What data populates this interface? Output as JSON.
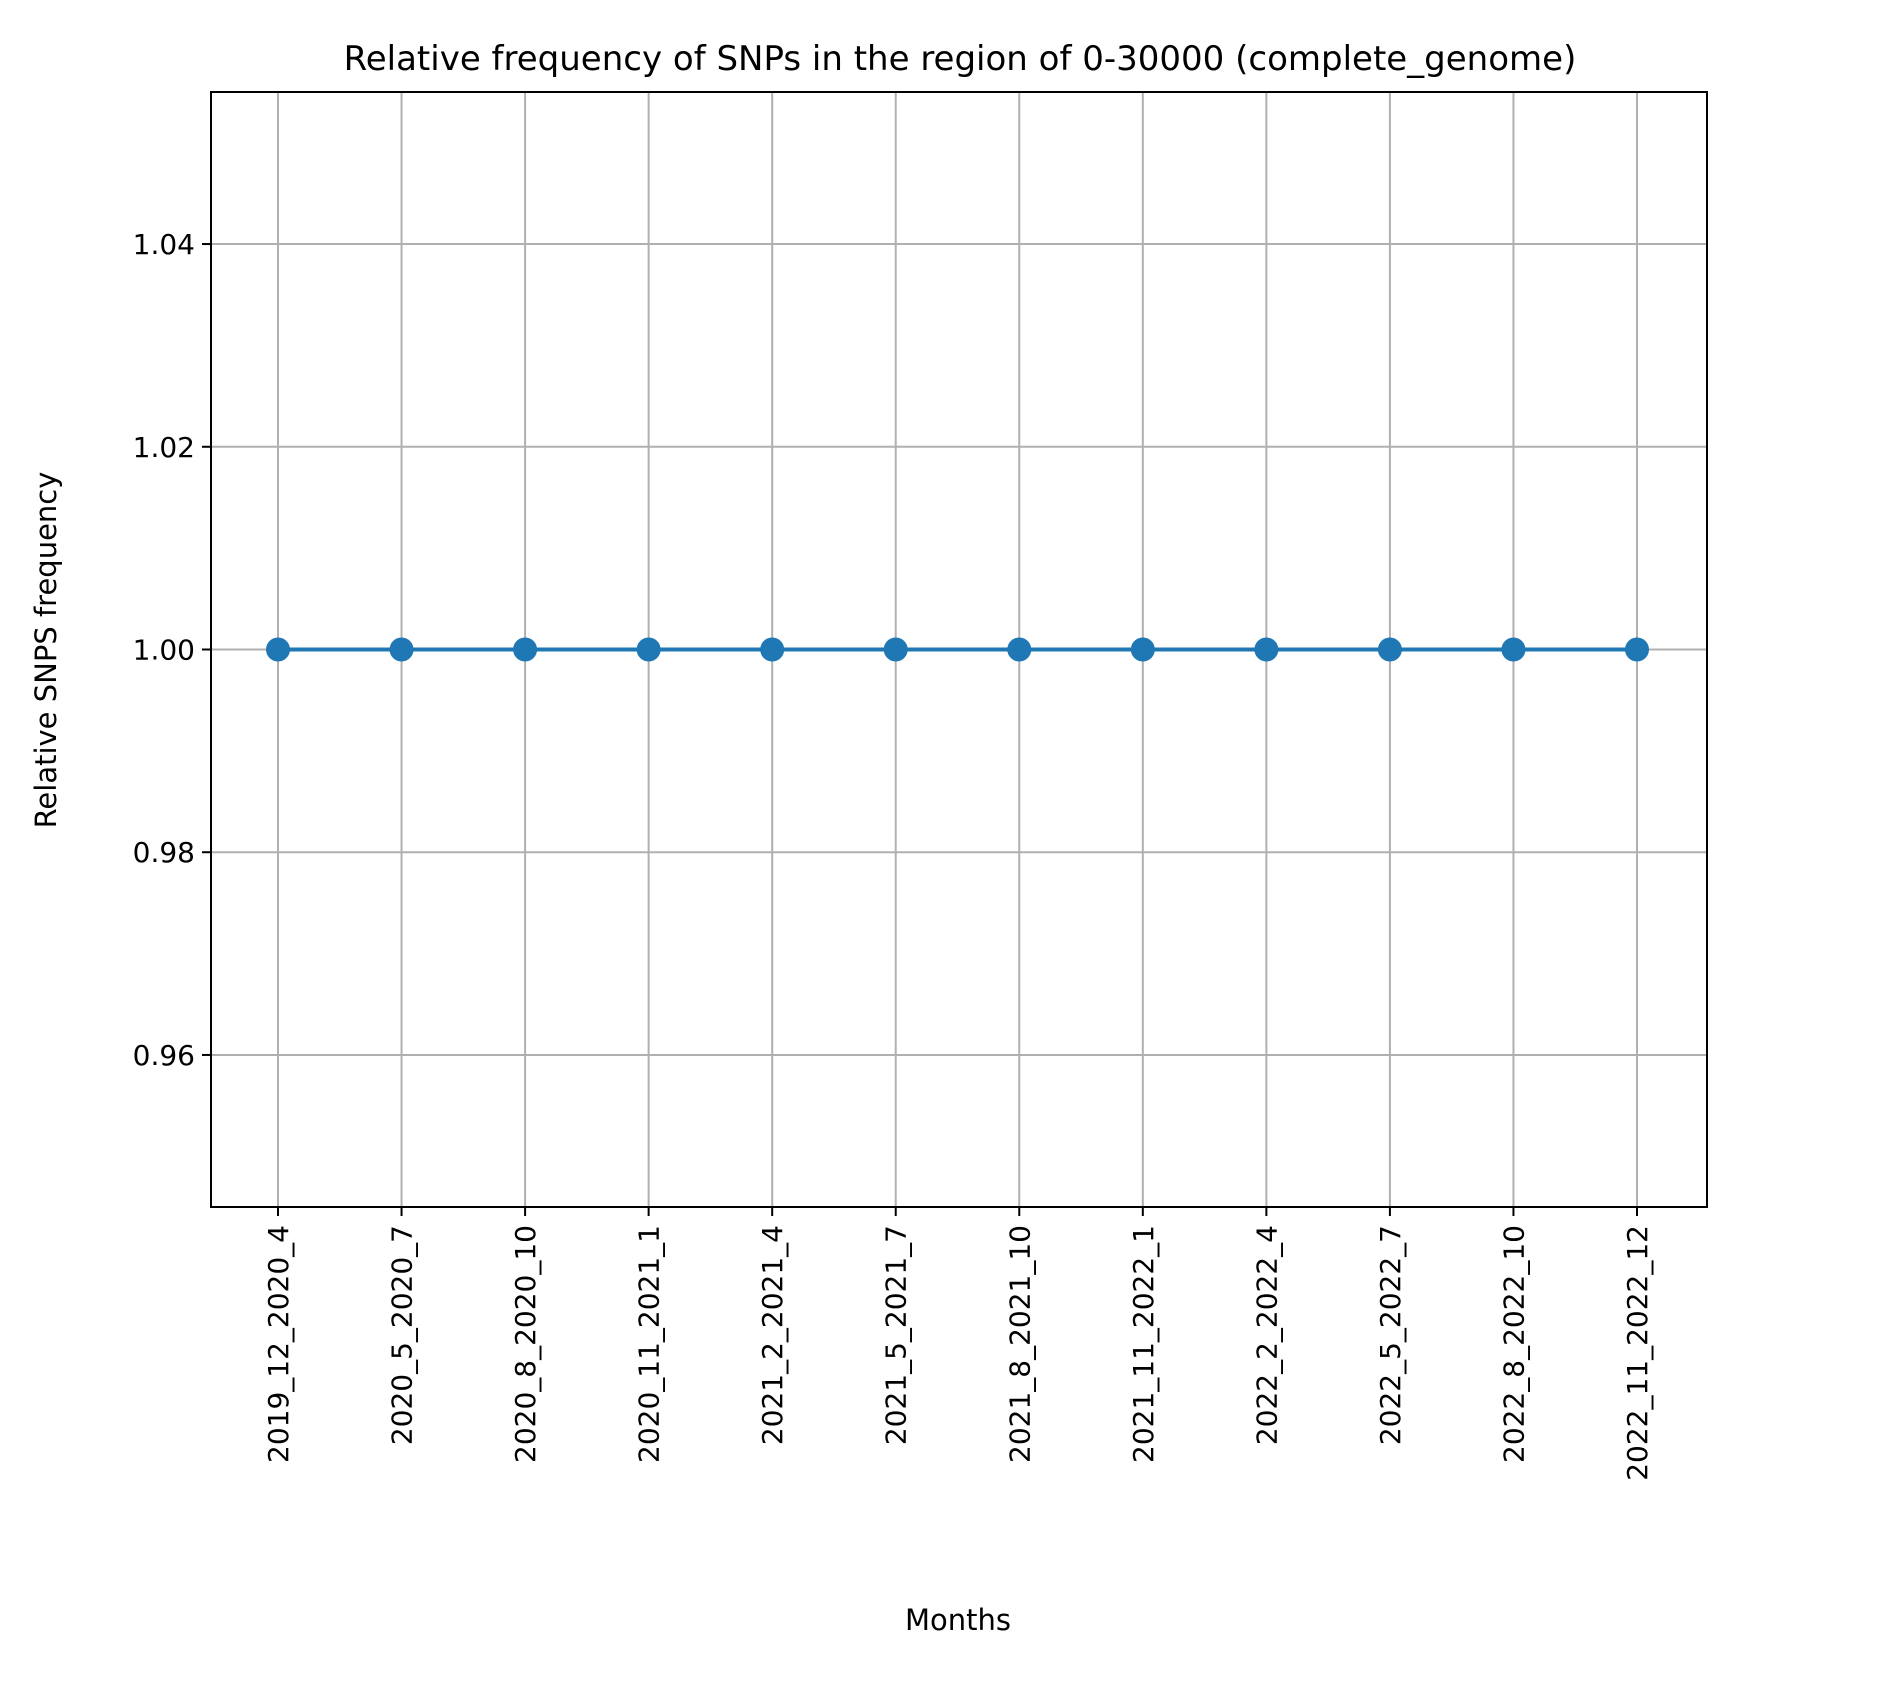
{
  "chart_data": {
    "type": "line",
    "title": "Relative frequency of SNPs in the region of 0-30000 (complete_genome)",
    "xlabel": "Months",
    "ylabel": "Relative SNPS frequency",
    "categories": [
      "2019_12_2020_4",
      "2020_5_2020_7",
      "2020_8_2020_10",
      "2020_11_2021_1",
      "2021_2_2021_4",
      "2021_5_2021_7",
      "2021_8_2021_10",
      "2021_11_2022_1",
      "2022_2_2022_4",
      "2022_5_2022_7",
      "2022_8_2022_10",
      "2022_11_2022_12"
    ],
    "series": [
      {
        "values": [
          1.0,
          1.0,
          1.0,
          1.0,
          1.0,
          1.0,
          1.0,
          1.0,
          1.0,
          1.0,
          1.0,
          1.0
        ],
        "color": "#1f77b4"
      }
    ],
    "yticks": [
      0.96,
      0.98,
      1.0,
      1.02,
      1.04
    ],
    "ytick_labels": [
      "0.96",
      "0.98",
      "1.00",
      "1.02",
      "1.04"
    ],
    "ylim": [
      0.945,
      1.055
    ],
    "grid": true,
    "marker": "circle"
  }
}
